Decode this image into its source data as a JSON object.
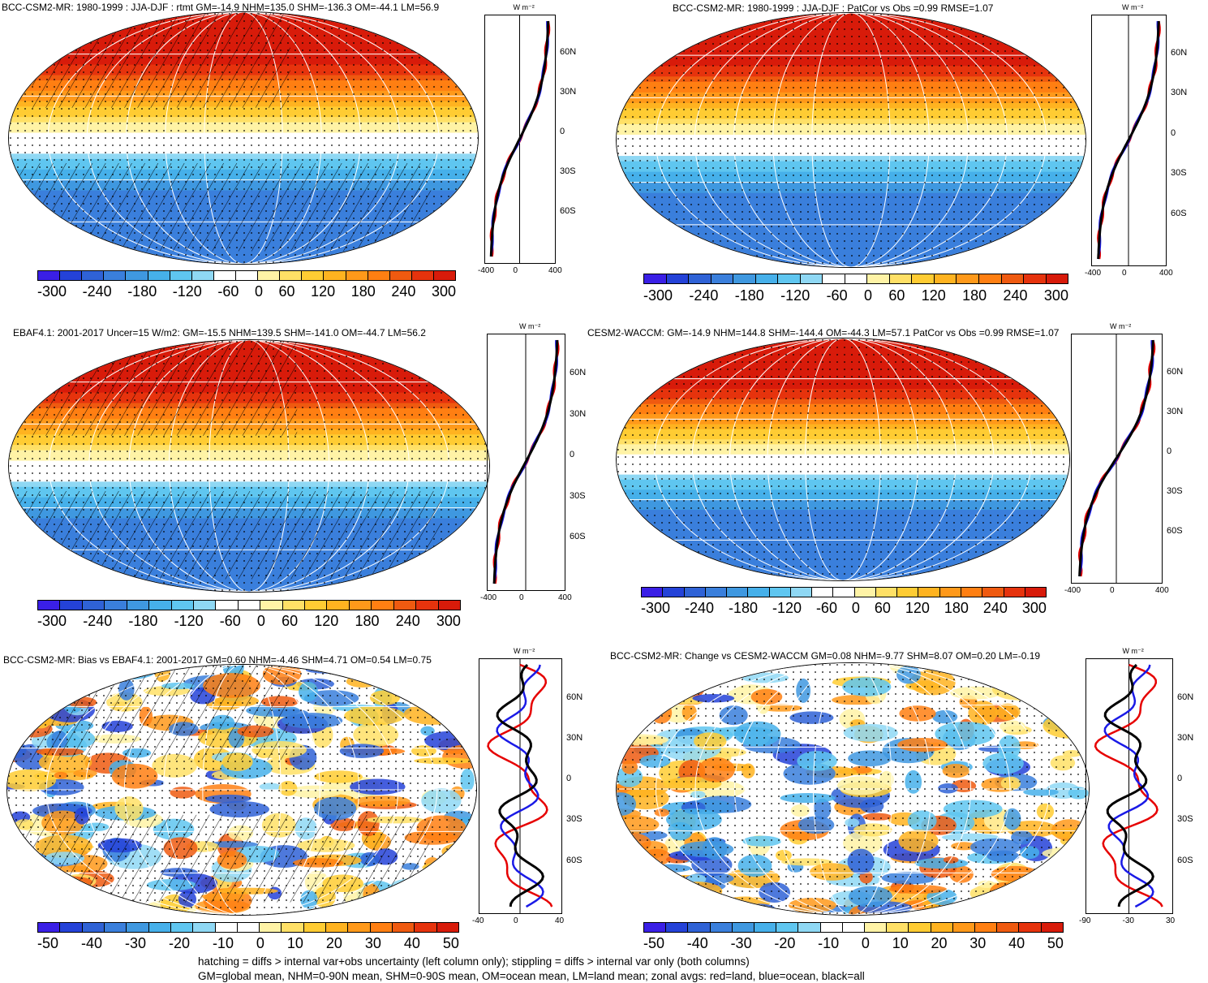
{
  "panels": [
    {
      "title": "BCC-CSM2-MR: 1980-1999 : JJA-DJF : rtmt GM=-14.9 NHM=135.0 SHM=-136.3 OM=-44.1 LM=56.9",
      "type": "field",
      "hatch": true,
      "cbar_labels": [
        "-300",
        "-240",
        "-180",
        "-120",
        "-60",
        "0",
        "60",
        "120",
        "180",
        "240",
        "300"
      ],
      "lat_labels": [
        "60N",
        "30N",
        "0",
        "30S",
        "60S"
      ],
      "x_ticks": [
        "-400",
        "0",
        "400"
      ],
      "unit": "W m⁻²"
    },
    {
      "title": "BCC-CSM2-MR: 1980-1999 : JJA-DJF : PatCor vs Obs =0.99 RMSE=1.07",
      "type": "field",
      "hatch": false,
      "cbar_labels": [
        "-300",
        "-240",
        "-180",
        "-120",
        "-60",
        "0",
        "60",
        "120",
        "180",
        "240",
        "300"
      ],
      "lat_labels": [
        "60N",
        "30N",
        "0",
        "30S",
        "60S"
      ],
      "x_ticks": [
        "-400",
        "0",
        "400"
      ],
      "unit": "W m⁻²"
    },
    {
      "title": "EBAF4.1: 2001-2017 Uncer=15 W/m2: GM=-15.5 NHM=139.5 SHM=-141.0 OM=-44.7 LM=56.2",
      "type": "field",
      "hatch": true,
      "cbar_labels": [
        "-300",
        "-240",
        "-180",
        "-120",
        "-60",
        "0",
        "60",
        "120",
        "180",
        "240",
        "300"
      ],
      "lat_labels": [
        "60N",
        "30N",
        "0",
        "30S",
        "60S"
      ],
      "x_ticks": [
        "-400",
        "0",
        "400"
      ],
      "unit": "W m⁻²"
    },
    {
      "title": "CESM2-WACCM: GM=-14.9 NHM=144.8 SHM=-144.4 OM=-44.3 LM=57.1 PatCor vs Obs =0.99 RMSE=1.07",
      "type": "field",
      "hatch": false,
      "cbar_labels": [
        "-300",
        "-240",
        "-180",
        "-120",
        "-60",
        "0",
        "60",
        "120",
        "180",
        "240",
        "300"
      ],
      "lat_labels": [
        "60N",
        "30N",
        "0",
        "30S",
        "60S"
      ],
      "x_ticks": [
        "-400",
        "0",
        "400"
      ],
      "unit": "W m⁻²"
    },
    {
      "title": "BCC-CSM2-MR: Bias vs EBAF4.1: 2001-2017 GM=0.60 NHM=-4.46 SHM=4.71 OM=0.54 LM=0.75",
      "type": "diff",
      "hatch": true,
      "cbar_labels": [
        "-50",
        "-40",
        "-30",
        "-20",
        "-10",
        "0",
        "10",
        "20",
        "30",
        "40",
        "50"
      ],
      "lat_labels": [
        "60N",
        "30N",
        "0",
        "30S",
        "60S"
      ],
      "x_ticks": [
        "-40",
        "0",
        "40"
      ],
      "unit": "W m⁻²"
    },
    {
      "title": "BCC-CSM2-MR: Change vs CESM2-WACCM GM=0.08 NHM=-9.77 SHM=8.07 OM=0.20 LM=-0.19",
      "type": "diff",
      "hatch": false,
      "cbar_labels": [
        "-50",
        "-40",
        "-30",
        "-20",
        "-10",
        "0",
        "10",
        "20",
        "30",
        "40",
        "50"
      ],
      "lat_labels": [
        "60N",
        "30N",
        "0",
        "30S",
        "60S"
      ],
      "x_ticks": [
        "-90",
        "-30",
        "30"
      ],
      "unit": "W m⁻²"
    }
  ],
  "palette": [
    "#3a1fe6",
    "#2442d8",
    "#2f62d6",
    "#3a7fdc",
    "#3f98e0",
    "#46b0ea",
    "#5fc6f0",
    "#8fd8f4",
    "#ffffff",
    "#ffffff",
    "#fff3a6",
    "#ffe066",
    "#ffcc33",
    "#ffb320",
    "#ff991a",
    "#ff7f12",
    "#ef5a10",
    "#e6330d",
    "#d81b0a"
  ],
  "legend_colors": {
    "land": "#e60000",
    "ocean": "#1a1ae6",
    "all": "#000000"
  },
  "footer": {
    "line1": "hatching = diffs > internal var+obs uncertainty (left column only); stippling = diffs > internal var only (both columns)",
    "line2": "GM=global mean, NHM=0-90N mean, SHM=0-90S mean, OM=ocean mean, LM=land mean; zonal avgs: red=land, blue=ocean, black=all"
  }
}
